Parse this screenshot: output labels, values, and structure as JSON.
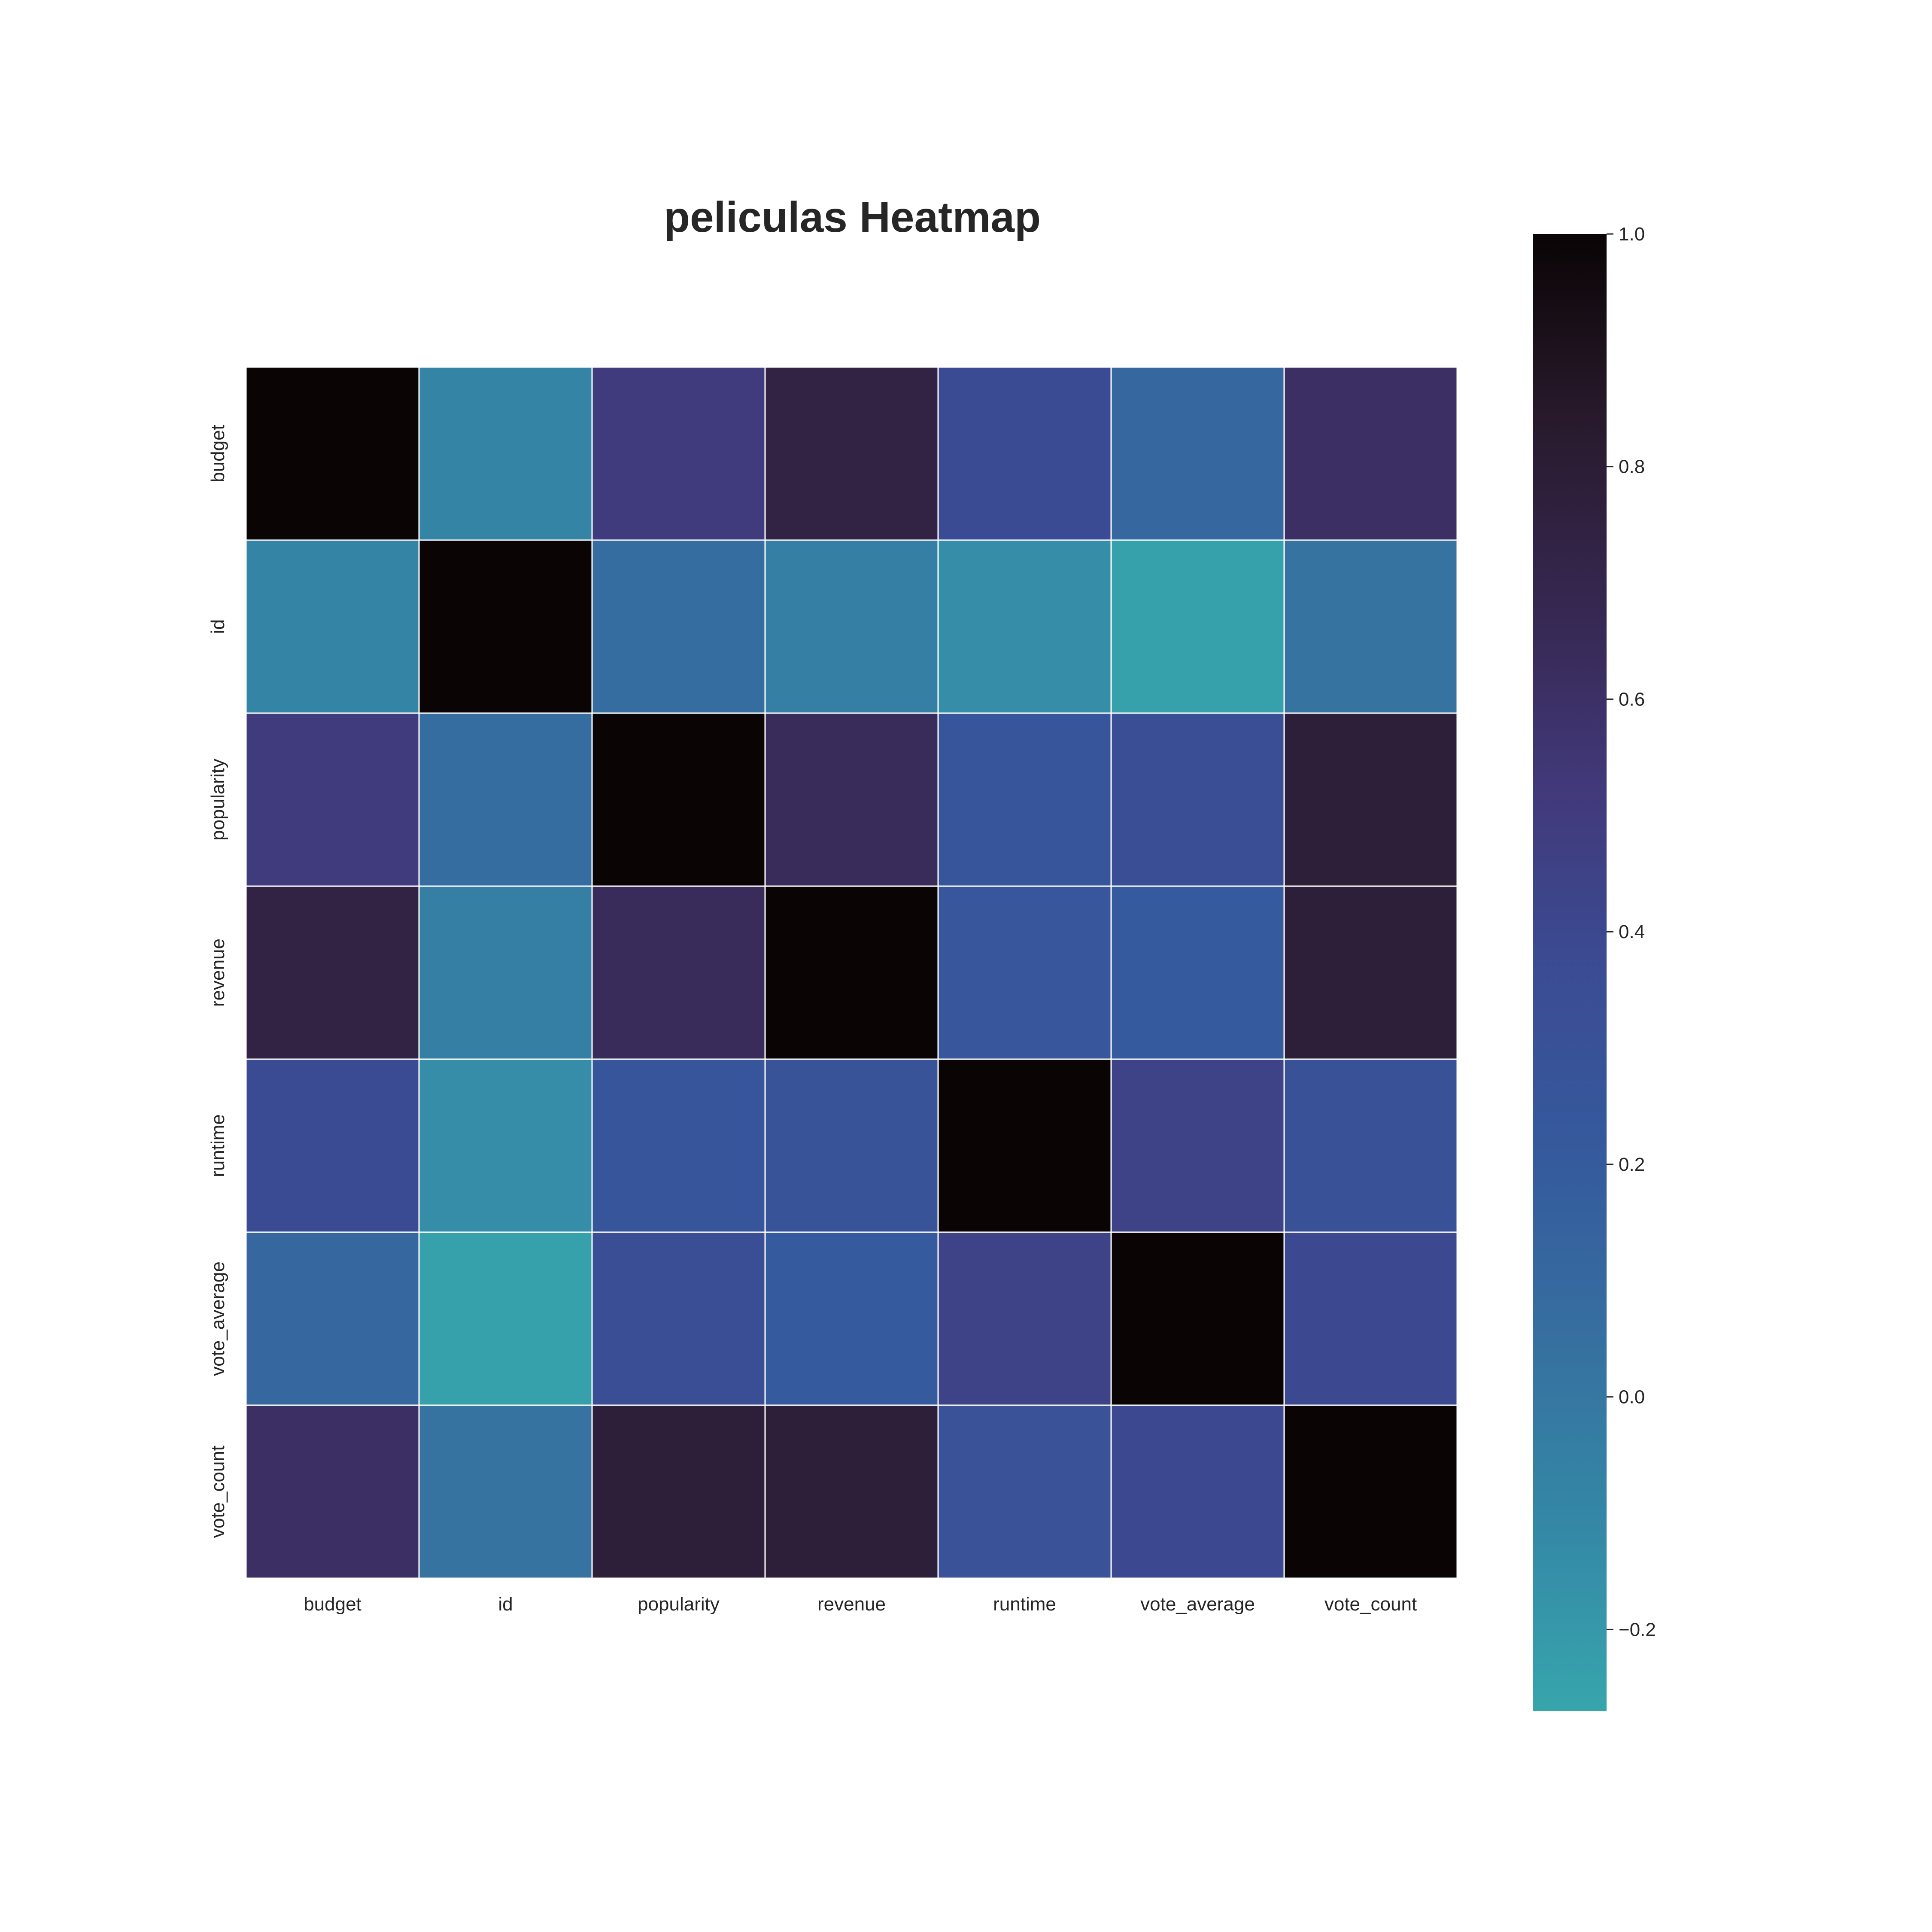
{
  "chart_data": {
    "type": "heatmap",
    "title": "peliculas Heatmap",
    "x_categories": [
      "budget",
      "id",
      "popularity",
      "revenue",
      "runtime",
      "vote_average",
      "vote_count"
    ],
    "y_categories": [
      "budget",
      "id",
      "popularity",
      "revenue",
      "runtime",
      "vote_average",
      "vote_count"
    ],
    "values": [
      [
        1.0,
        -0.09,
        0.51,
        0.73,
        0.37,
        0.11,
        0.61
      ],
      [
        -0.09,
        1.0,
        0.07,
        -0.05,
        -0.14,
        -0.25,
        0.03
      ],
      [
        0.51,
        0.07,
        1.0,
        0.64,
        0.26,
        0.34,
        0.78
      ],
      [
        0.73,
        -0.05,
        0.64,
        1.0,
        0.25,
        0.21,
        0.78
      ],
      [
        0.37,
        -0.14,
        0.26,
        0.29,
        1.0,
        0.45,
        0.31
      ],
      [
        0.11,
        -0.25,
        0.34,
        0.21,
        0.45,
        1.0,
        0.39
      ],
      [
        0.61,
        0.03,
        0.78,
        0.78,
        0.3,
        0.39,
        1.0
      ]
    ],
    "colorbar": {
      "vmin": -0.27,
      "vmax": 1.0,
      "ticks": [
        -0.2,
        0.0,
        0.2,
        0.4,
        0.6,
        0.8,
        1.0
      ],
      "tick_labels": [
        "−0.2",
        "0.0",
        "0.2",
        "0.4",
        "0.6",
        "0.8",
        "1.0"
      ]
    },
    "colormap": [
      "#37a5ac",
      "#3488a6",
      "#3670a0",
      "#355a9d",
      "#3b4c94",
      "#41397a",
      "#362750",
      "#281a2c",
      "#0a0405"
    ],
    "cell_border_color": "#ffffff",
    "grid": false
  }
}
